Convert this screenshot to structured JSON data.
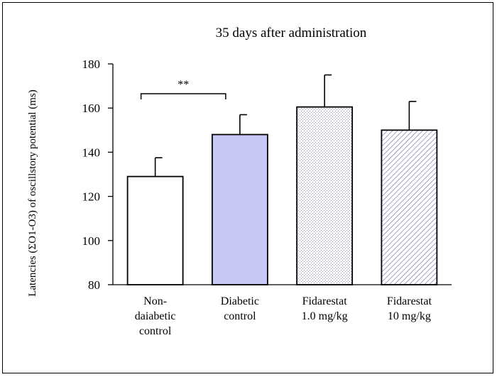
{
  "chart_data": {
    "type": "bar",
    "title": "35 days after administration",
    "ylabel": "Latencies (ΣO1-O3) of oscillstory potential (ms)",
    "xlabel": "",
    "ylim": [
      80,
      180
    ],
    "yticks": [
      80,
      100,
      120,
      140,
      160,
      180
    ],
    "categories": [
      [
        "Non-",
        "daiabetic",
        "control"
      ],
      [
        "Diabetic",
        "control"
      ],
      [
        "Fidarestat",
        "1.0 mg/kg"
      ],
      [
        "Fidarestat",
        "10 mg/kg"
      ]
    ],
    "values": [
      129,
      148,
      160.5,
      150
    ],
    "error_upper": [
      137.5,
      157,
      175,
      163
    ],
    "bar_styles": [
      "white",
      "solid-lavender",
      "dotted",
      "diagonal-hatch"
    ],
    "significance": {
      "between": [
        0,
        1
      ],
      "label": "**"
    },
    "grid": false,
    "legend": "none",
    "colors": {
      "lavender": "#c8c8f4",
      "edge": "#000000",
      "dots": "#9090c0",
      "hatch": "#7a7ab4"
    }
  }
}
